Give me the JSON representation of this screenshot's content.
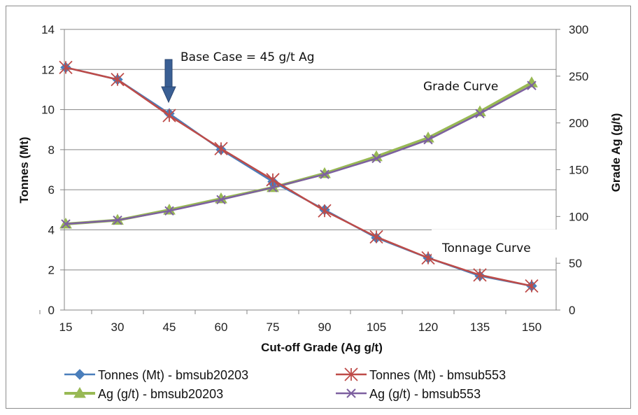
{
  "chart_data": {
    "type": "line",
    "title": "",
    "xlabel": "Cut-off Grade (Ag g/t)",
    "ylabel": "Tonnes (Mt)",
    "y2label": "Grade Ag (g/t)",
    "x": [
      15,
      30,
      45,
      60,
      75,
      90,
      105,
      120,
      135,
      150
    ],
    "x_ticks": [
      "15",
      "30",
      "45",
      "60",
      "75",
      "90",
      "105",
      "120",
      "135",
      "150"
    ],
    "ylim": [
      0,
      14
    ],
    "y_ticks": [
      "0",
      "2",
      "4",
      "6",
      "8",
      "10",
      "12",
      "14"
    ],
    "y2lim": [
      0,
      300
    ],
    "y2_ticks": [
      "0",
      "50",
      "100",
      "150",
      "200",
      "250",
      "300"
    ],
    "grid": true,
    "series": [
      {
        "name": "Tonnes (Mt) - bmsub20203",
        "axis": "left",
        "color": "#4a7ebb",
        "marker": "diamond",
        "values": [
          12.1,
          11.5,
          9.8,
          8.0,
          6.4,
          5.0,
          3.6,
          2.6,
          1.7,
          1.2
        ]
      },
      {
        "name": "Tonnes (Mt) - bmsub553",
        "axis": "left",
        "color": "#be4b48",
        "marker": "star",
        "values": [
          12.1,
          11.5,
          9.7,
          8.05,
          6.5,
          4.95,
          3.65,
          2.6,
          1.75,
          1.2
        ]
      },
      {
        "name": "Ag (g/t) - bmsub20203",
        "axis": "right",
        "color": "#98b954",
        "marker": "triangle",
        "values": [
          92,
          96,
          107,
          119,
          131,
          146,
          164,
          184,
          212,
          243
        ]
      },
      {
        "name": "Ag (g/t) - bmsub553",
        "axis": "right",
        "color": "#7d60a0",
        "marker": "x",
        "values": [
          92,
          96,
          106,
          118,
          131,
          145,
          162,
          182,
          210,
          240
        ]
      }
    ],
    "annotations": [
      {
        "text": "Base Case = 45 g/t Ag",
        "x": 45,
        "arrow": "down"
      },
      {
        "text": "Grade Curve"
      },
      {
        "text": "Tonnage Curve"
      }
    ],
    "legend_position": "bottom"
  }
}
